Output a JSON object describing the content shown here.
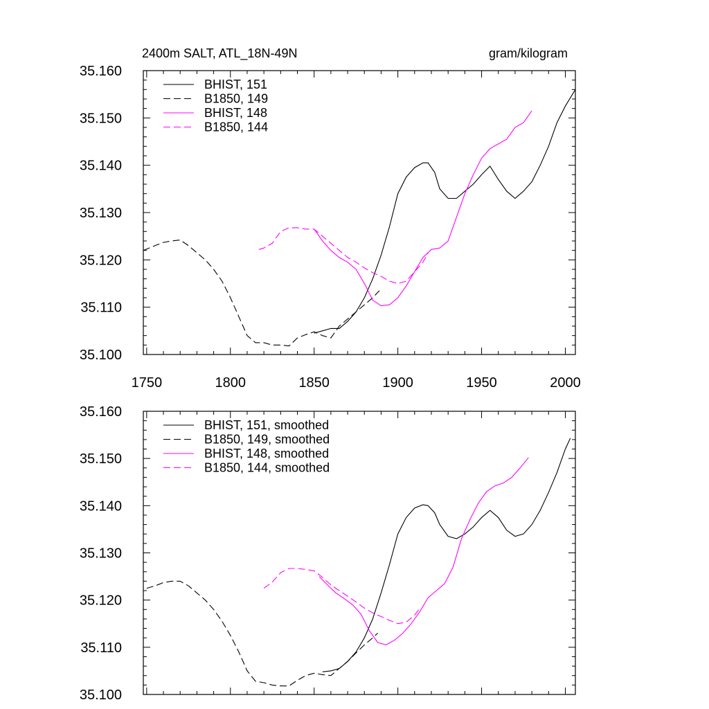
{
  "chart_data": [
    {
      "type": "line",
      "title_left": "2400m SALT, ATL_18N-49N",
      "title_right": "gram/kilogram",
      "xlim": [
        1748,
        2006
      ],
      "ylim": [
        35.1,
        35.16
      ],
      "xticks": [
        1750,
        1800,
        1850,
        1900,
        1950,
        2000
      ],
      "xtick_labels": [
        "1750",
        "1800",
        "1850",
        "1900",
        "1950",
        "2000"
      ],
      "yticks": [
        35.1,
        35.11,
        35.12,
        35.13,
        35.14,
        35.15,
        35.16
      ],
      "ytick_labels": [
        "35.100",
        "35.110",
        "35.120",
        "35.130",
        "35.140",
        "35.150",
        "35.160"
      ],
      "legend_position": "top-left",
      "series": [
        {
          "name": "BHIST, 151",
          "color": "#000000",
          "dash": "solid",
          "x": [
            1850,
            1855,
            1860,
            1865,
            1870,
            1875,
            1880,
            1885,
            1890,
            1895,
            1900,
            1905,
            1910,
            1915,
            1918,
            1922,
            1925,
            1930,
            1935,
            1940,
            1945,
            1950,
            1955,
            1960,
            1965,
            1970,
            1975,
            1980,
            1985,
            1990,
            1995,
            2000,
            2006
          ],
          "y": [
            35.1045,
            35.105,
            35.1055,
            35.1055,
            35.107,
            35.109,
            35.112,
            35.116,
            35.121,
            35.127,
            35.134,
            35.1375,
            35.1395,
            35.1405,
            35.1405,
            35.1385,
            35.135,
            35.133,
            35.133,
            35.1345,
            35.136,
            35.138,
            35.1398,
            35.137,
            35.1345,
            35.133,
            35.1345,
            35.1365,
            35.14,
            35.144,
            35.149,
            35.1525,
            35.156
          ]
        },
        {
          "name": "B1850, 149",
          "color": "#000000",
          "dash": "dashed",
          "x": [
            1748,
            1755,
            1760,
            1765,
            1770,
            1775,
            1780,
            1785,
            1790,
            1795,
            1800,
            1805,
            1810,
            1815,
            1820,
            1825,
            1830,
            1835,
            1840,
            1845,
            1850,
            1855,
            1860,
            1865,
            1870,
            1875,
            1880,
            1885,
            1889
          ],
          "y": [
            35.122,
            35.123,
            35.1237,
            35.124,
            35.1242,
            35.123,
            35.1215,
            35.12,
            35.118,
            35.1155,
            35.112,
            35.108,
            35.104,
            35.1025,
            35.1025,
            35.102,
            35.102,
            35.1018,
            35.1035,
            35.1042,
            35.1048,
            35.104,
            35.1035,
            35.106,
            35.1075,
            35.109,
            35.1105,
            35.112,
            35.1135
          ]
        },
        {
          "name": "BHIST, 148",
          "color": "#ff00ff",
          "dash": "solid",
          "x": [
            1850,
            1855,
            1860,
            1865,
            1870,
            1875,
            1880,
            1885,
            1890,
            1895,
            1900,
            1905,
            1910,
            1915,
            1920,
            1925,
            1930,
            1935,
            1940,
            1945,
            1950,
            1955,
            1960,
            1965,
            1970,
            1975,
            1980
          ],
          "y": [
            35.1265,
            35.124,
            35.122,
            35.1205,
            35.1195,
            35.118,
            35.115,
            35.1115,
            35.1103,
            35.1105,
            35.112,
            35.1145,
            35.1175,
            35.1205,
            35.1222,
            35.1225,
            35.124,
            35.129,
            35.134,
            35.138,
            35.1415,
            35.1435,
            35.1445,
            35.1455,
            35.148,
            35.149,
            35.1515
          ]
        },
        {
          "name": "B1850, 144",
          "color": "#ff00ff",
          "dash": "dashed",
          "x": [
            1817,
            1820,
            1825,
            1830,
            1835,
            1840,
            1845,
            1850,
            1855,
            1860,
            1865,
            1870,
            1875,
            1880,
            1885,
            1890,
            1895,
            1900,
            1905,
            1910,
            1915,
            1918
          ],
          "y": [
            35.1222,
            35.1225,
            35.1235,
            35.126,
            35.1268,
            35.1268,
            35.1265,
            35.1265,
            35.125,
            35.1235,
            35.122,
            35.1205,
            35.1195,
            35.1183,
            35.1173,
            35.1165,
            35.1155,
            35.115,
            35.1155,
            35.1175,
            35.1195,
            35.1215
          ]
        }
      ]
    },
    {
      "type": "line",
      "xlim": [
        1748,
        2006
      ],
      "ylim": [
        35.1,
        35.16
      ],
      "xticks": [
        1750,
        1800,
        1850,
        1900,
        1950,
        2000
      ],
      "yticks": [
        35.1,
        35.11,
        35.12,
        35.13,
        35.14,
        35.15,
        35.16
      ],
      "ytick_labels": [
        "35.100",
        "35.110",
        "35.120",
        "35.130",
        "35.140",
        "35.150",
        "35.160"
      ],
      "legend_position": "top-left",
      "series": [
        {
          "name": "BHIST, 151, smoothed",
          "color": "#000000",
          "dash": "solid",
          "x": [
            1855,
            1860,
            1865,
            1870,
            1875,
            1880,
            1885,
            1890,
            1895,
            1900,
            1905,
            1910,
            1915,
            1918,
            1922,
            1925,
            1930,
            1935,
            1940,
            1945,
            1950,
            1955,
            1960,
            1965,
            1970,
            1975,
            1980,
            1985,
            1990,
            1995,
            2000,
            2003
          ],
          "y": [
            35.1048,
            35.105,
            35.1055,
            35.107,
            35.109,
            35.112,
            35.116,
            35.1215,
            35.1275,
            35.134,
            35.1375,
            35.1395,
            35.1402,
            35.14,
            35.1385,
            35.136,
            35.1335,
            35.133,
            35.134,
            35.1355,
            35.1375,
            35.139,
            35.1375,
            35.1348,
            35.1335,
            35.134,
            35.136,
            35.139,
            35.1428,
            35.147,
            35.152,
            35.1543
          ]
        },
        {
          "name": "B1850, 149, smoothed",
          "color": "#000000",
          "dash": "dashed",
          "x": [
            1750,
            1755,
            1760,
            1765,
            1770,
            1775,
            1780,
            1785,
            1790,
            1795,
            1800,
            1805,
            1810,
            1815,
            1820,
            1825,
            1830,
            1835,
            1840,
            1845,
            1850,
            1855,
            1860,
            1865,
            1870,
            1875,
            1880,
            1885,
            1888
          ],
          "y": [
            35.1225,
            35.123,
            35.1237,
            35.124,
            35.124,
            35.123,
            35.1215,
            35.12,
            35.118,
            35.1155,
            35.1125,
            35.109,
            35.105,
            35.1028,
            35.1025,
            35.102,
            35.1018,
            35.1018,
            35.103,
            35.104,
            35.1045,
            35.1042,
            35.104,
            35.1055,
            35.107,
            35.1088,
            35.1105,
            35.112,
            35.113
          ]
        },
        {
          "name": "BHIST, 148, smoothed",
          "color": "#ff00ff",
          "dash": "solid",
          "x": [
            1853,
            1858,
            1863,
            1868,
            1873,
            1878,
            1883,
            1888,
            1893,
            1898,
            1903,
            1908,
            1913,
            1918,
            1923,
            1928,
            1933,
            1938,
            1943,
            1948,
            1953,
            1958,
            1963,
            1968,
            1973,
            1978
          ],
          "y": [
            35.125,
            35.1232,
            35.1215,
            35.1203,
            35.119,
            35.117,
            35.1135,
            35.111,
            35.1105,
            35.1115,
            35.113,
            35.115,
            35.1175,
            35.1205,
            35.122,
            35.1235,
            35.127,
            35.133,
            35.137,
            35.1405,
            35.143,
            35.1442,
            35.1448,
            35.146,
            35.148,
            35.1502
          ]
        },
        {
          "name": "B1850, 144, smoothed",
          "color": "#ff00ff",
          "dash": "dashed",
          "x": [
            1820,
            1825,
            1830,
            1835,
            1840,
            1845,
            1850,
            1855,
            1860,
            1865,
            1870,
            1875,
            1880,
            1885,
            1890,
            1895,
            1900,
            1905,
            1910,
            1913
          ],
          "y": [
            35.1225,
            35.1238,
            35.1258,
            35.1267,
            35.1267,
            35.1265,
            35.1262,
            35.1248,
            35.1232,
            35.122,
            35.1208,
            35.1196,
            35.1183,
            35.1173,
            35.1165,
            35.1157,
            35.115,
            35.1153,
            35.1168,
            35.1182
          ]
        }
      ]
    }
  ]
}
